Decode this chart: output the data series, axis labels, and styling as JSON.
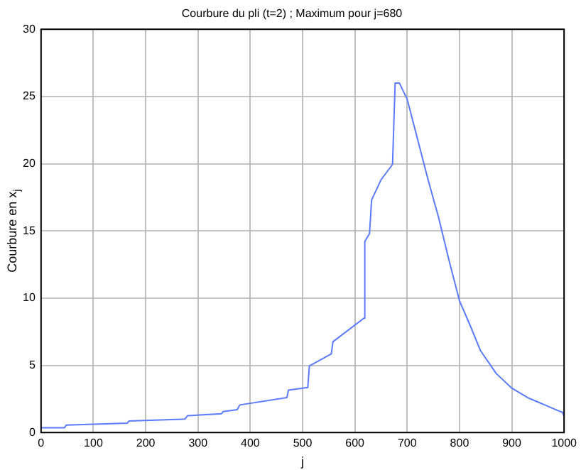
{
  "chart_data": {
    "type": "line",
    "title": "Courbure du pli (t=2) ; Maximum pour j=680",
    "xlabel": "j",
    "ylabel": "Courbure en x$_{j}$",
    "series": [
      {
        "color": "#5b7bff",
        "x": [
          0,
          45,
          48,
          165,
          168,
          275,
          280,
          345,
          348,
          375,
          380,
          470,
          473,
          510,
          513,
          555,
          558,
          617,
          619,
          628,
          632,
          650,
          672,
          677,
          685,
          700,
          720,
          740,
          760,
          780,
          800,
          820,
          840,
          870,
          900,
          930,
          960,
          990,
          997,
          1000
        ],
        "values": [
          0.35,
          0.35,
          0.55,
          0.7,
          0.85,
          1.0,
          1.25,
          1.4,
          1.55,
          1.7,
          2.05,
          2.6,
          3.15,
          3.35,
          4.95,
          5.85,
          6.75,
          8.5,
          14.2,
          14.8,
          17.3,
          18.8,
          19.95,
          26,
          26,
          24.8,
          21.8,
          18.8,
          16.0,
          12.8,
          9.8,
          8.0,
          6.1,
          4.4,
          3.3,
          2.6,
          2.1,
          1.6,
          1.5,
          1.2
        ]
      }
    ],
    "xlim": [
      0,
      1000
    ],
    "xticks": [
      0,
      100,
      200,
      300,
      400,
      500,
      600,
      700,
      800,
      900,
      1000
    ],
    "ylim": [
      0,
      30
    ],
    "yticks": [
      0,
      5,
      10,
      15,
      20,
      25,
      30
    ],
    "grid": true,
    "line_style": "solid",
    "marker": "none",
    "legend": false
  }
}
